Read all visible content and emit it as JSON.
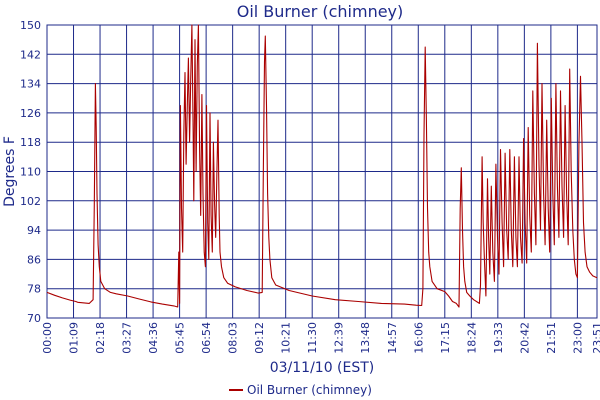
{
  "chart_data": {
    "type": "line",
    "title": "Oil Burner (chimney)",
    "xlabel": "03/11/10 (EST)",
    "ylabel": "Degrees F",
    "ylim": [
      70,
      150
    ],
    "yticks": [
      "70",
      "78",
      "86",
      "94",
      "102",
      "110",
      "118",
      "126",
      "134",
      "142",
      "150"
    ],
    "xlim": [
      "00:00",
      "23:51"
    ],
    "xticks": [
      "00:00",
      "01:09",
      "02:18",
      "03:27",
      "04:36",
      "05:45",
      "06:54",
      "08:03",
      "09:12",
      "10:21",
      "11:30",
      "12:39",
      "13:48",
      "14:57",
      "16:06",
      "17:15",
      "18:24",
      "19:33",
      "20:42",
      "21:51",
      "23:00",
      "23:51"
    ],
    "grid": true,
    "legend": {
      "position": "bottom-center"
    },
    "series": [
      {
        "name": "Oil Burner (chimney)",
        "color": "#aa0000",
        "points": [
          [
            "00:00",
            77.0
          ],
          [
            "00:20",
            76.2
          ],
          [
            "00:40",
            75.5
          ],
          [
            "01:00",
            74.9
          ],
          [
            "01:15",
            74.5
          ],
          [
            "01:20",
            74.3
          ],
          [
            "01:50",
            74.0
          ],
          [
            "02:00",
            75.0
          ],
          [
            "02:03",
            101.0
          ],
          [
            "02:06",
            134.0
          ],
          [
            "02:08",
            122.0
          ],
          [
            "02:10",
            104.0
          ],
          [
            "02:13",
            90.0
          ],
          [
            "02:16",
            84.0
          ],
          [
            "02:20",
            80.0
          ],
          [
            "02:30",
            78.0
          ],
          [
            "02:45",
            77.0
          ],
          [
            "03:00",
            76.6
          ],
          [
            "03:30",
            76.0
          ],
          [
            "04:00",
            75.2
          ],
          [
            "04:30",
            74.4
          ],
          [
            "05:00",
            73.8
          ],
          [
            "05:30",
            73.3
          ],
          [
            "05:40",
            73.0
          ],
          [
            "05:43",
            88.0
          ],
          [
            "05:45",
            74.0
          ],
          [
            "05:47",
            128.0
          ],
          [
            "05:50",
            100.0
          ],
          [
            "05:53",
            88.0
          ],
          [
            "05:56",
            120.0
          ],
          [
            "05:59",
            137.0
          ],
          [
            "06:02",
            112.0
          ],
          [
            "06:05",
            128.0
          ],
          [
            "06:08",
            141.0
          ],
          [
            "06:11",
            118.0
          ],
          [
            "06:14",
            135.0
          ],
          [
            "06:17",
            150.0
          ],
          [
            "06:20",
            122.0
          ],
          [
            "06:22",
            102.0
          ],
          [
            "06:25",
            146.0
          ],
          [
            "06:28",
            110.0
          ],
          [
            "06:31",
            139.0
          ],
          [
            "06:34",
            150.0
          ],
          [
            "06:37",
            116.0
          ],
          [
            "06:40",
            98.0
          ],
          [
            "06:43",
            131.0
          ],
          [
            "06:46",
            104.0
          ],
          [
            "06:49",
            88.0
          ],
          [
            "06:52",
            84.0
          ],
          [
            "06:55",
            128.0
          ],
          [
            "06:58",
            96.0
          ],
          [
            "07:01",
            86.0
          ],
          [
            "07:04",
            126.0
          ],
          [
            "07:07",
            98.0
          ],
          [
            "07:10",
            88.0
          ],
          [
            "07:13",
            118.0
          ],
          [
            "07:16",
            101.0
          ],
          [
            "07:19",
            92.0
          ],
          [
            "07:22",
            110.0
          ],
          [
            "07:25",
            124.0
          ],
          [
            "07:28",
            98.0
          ],
          [
            "07:30",
            88.0
          ],
          [
            "07:34",
            84.0
          ],
          [
            "07:40",
            81.0
          ],
          [
            "07:50",
            79.5
          ],
          [
            "08:10",
            78.5
          ],
          [
            "08:40",
            77.5
          ],
          [
            "09:10",
            76.8
          ],
          [
            "09:20",
            77.0
          ],
          [
            "09:23",
            112.0
          ],
          [
            "09:26",
            140.0
          ],
          [
            "09:28",
            147.0
          ],
          [
            "09:31",
            128.0
          ],
          [
            "09:34",
            104.0
          ],
          [
            "09:37",
            92.0
          ],
          [
            "09:40",
            86.0
          ],
          [
            "09:45",
            81.0
          ],
          [
            "09:55",
            79.0
          ],
          [
            "10:30",
            77.5
          ],
          [
            "11:30",
            76.0
          ],
          [
            "12:30",
            75.0
          ],
          [
            "13:30",
            74.5
          ],
          [
            "14:30",
            74.0
          ],
          [
            "15:30",
            73.8
          ],
          [
            "16:00",
            73.5
          ],
          [
            "16:15",
            73.4
          ],
          [
            "16:18",
            78.0
          ],
          [
            "16:21",
            120.0
          ],
          [
            "16:24",
            144.0
          ],
          [
            "16:27",
            124.0
          ],
          [
            "16:30",
            100.0
          ],
          [
            "16:33",
            88.0
          ],
          [
            "16:36",
            84.0
          ],
          [
            "16:42",
            80.0
          ],
          [
            "16:55",
            78.0
          ],
          [
            "17:15",
            77.2
          ],
          [
            "17:25",
            76.0
          ],
          [
            "17:35",
            74.5
          ],
          [
            "17:45",
            74.0
          ],
          [
            "17:52",
            73.0
          ],
          [
            "17:55",
            100.0
          ],
          [
            "17:58",
            111.0
          ],
          [
            "18:01",
            94.0
          ],
          [
            "18:04",
            84.0
          ],
          [
            "18:07",
            80.0
          ],
          [
            "18:12",
            77.0
          ],
          [
            "18:20",
            76.0
          ],
          [
            "18:30",
            75.0
          ],
          [
            "18:45",
            74.0
          ],
          [
            "18:48",
            79.0
          ],
          [
            "18:52",
            114.0
          ],
          [
            "18:55",
            96.0
          ],
          [
            "18:58",
            86.0
          ],
          [
            "19:02",
            76.0
          ],
          [
            "19:06",
            108.0
          ],
          [
            "19:09",
            92.0
          ],
          [
            "19:12",
            82.0
          ],
          [
            "19:16",
            106.0
          ],
          [
            "19:20",
            88.0
          ],
          [
            "19:24",
            80.0
          ],
          [
            "19:28",
            112.0
          ],
          [
            "19:32",
            92.0
          ],
          [
            "19:36",
            82.0
          ],
          [
            "19:40",
            116.0
          ],
          [
            "19:44",
            96.0
          ],
          [
            "19:48",
            84.0
          ],
          [
            "19:52",
            115.0
          ],
          [
            "19:56",
            94.0
          ],
          [
            "20:00",
            86.0
          ],
          [
            "20:04",
            116.0
          ],
          [
            "20:08",
            94.0
          ],
          [
            "20:12",
            84.0
          ],
          [
            "20:16",
            114.0
          ],
          [
            "20:20",
            92.0
          ],
          [
            "20:24",
            84.0
          ],
          [
            "20:28",
            114.0
          ],
          [
            "20:32",
            92.0
          ],
          [
            "20:36",
            85.0
          ],
          [
            "20:40",
            119.0
          ],
          [
            "20:44",
            96.0
          ],
          [
            "20:48",
            85.0
          ],
          [
            "20:52",
            122.0
          ],
          [
            "20:56",
            98.0
          ],
          [
            "21:00",
            88.0
          ],
          [
            "21:04",
            132.0
          ],
          [
            "21:08",
            104.0
          ],
          [
            "21:12",
            90.0
          ],
          [
            "21:16",
            145.0
          ],
          [
            "21:20",
            112.0
          ],
          [
            "21:24",
            94.0
          ],
          [
            "21:28",
            134.0
          ],
          [
            "21:32",
            104.0
          ],
          [
            "21:36",
            90.0
          ],
          [
            "21:40",
            124.0
          ],
          [
            "21:44",
            100.0
          ],
          [
            "21:48",
            88.0
          ],
          [
            "21:52",
            130.0
          ],
          [
            "21:56",
            104.0
          ],
          [
            "22:00",
            90.0
          ],
          [
            "22:04",
            134.0
          ],
          [
            "22:08",
            106.0
          ],
          [
            "22:12",
            92.0
          ],
          [
            "22:16",
            132.0
          ],
          [
            "22:20",
            106.0
          ],
          [
            "22:24",
            92.0
          ],
          [
            "22:28",
            128.0
          ],
          [
            "22:32",
            104.0
          ],
          [
            "22:36",
            90.0
          ],
          [
            "22:40",
            138.0
          ],
          [
            "22:44",
            110.0
          ],
          [
            "22:48",
            94.0
          ],
          [
            "22:52",
            86.0
          ],
          [
            "22:56",
            82.0
          ],
          [
            "23:00",
            81.0
          ],
          [
            "23:04",
            117.0
          ],
          [
            "23:08",
            136.0
          ],
          [
            "23:12",
            118.0
          ],
          [
            "23:16",
            96.0
          ],
          [
            "23:20",
            88.0
          ],
          [
            "23:25",
            84.0
          ],
          [
            "23:32",
            82.5
          ],
          [
            "23:40",
            81.5
          ],
          [
            "23:51",
            81.0
          ]
        ]
      }
    ]
  }
}
